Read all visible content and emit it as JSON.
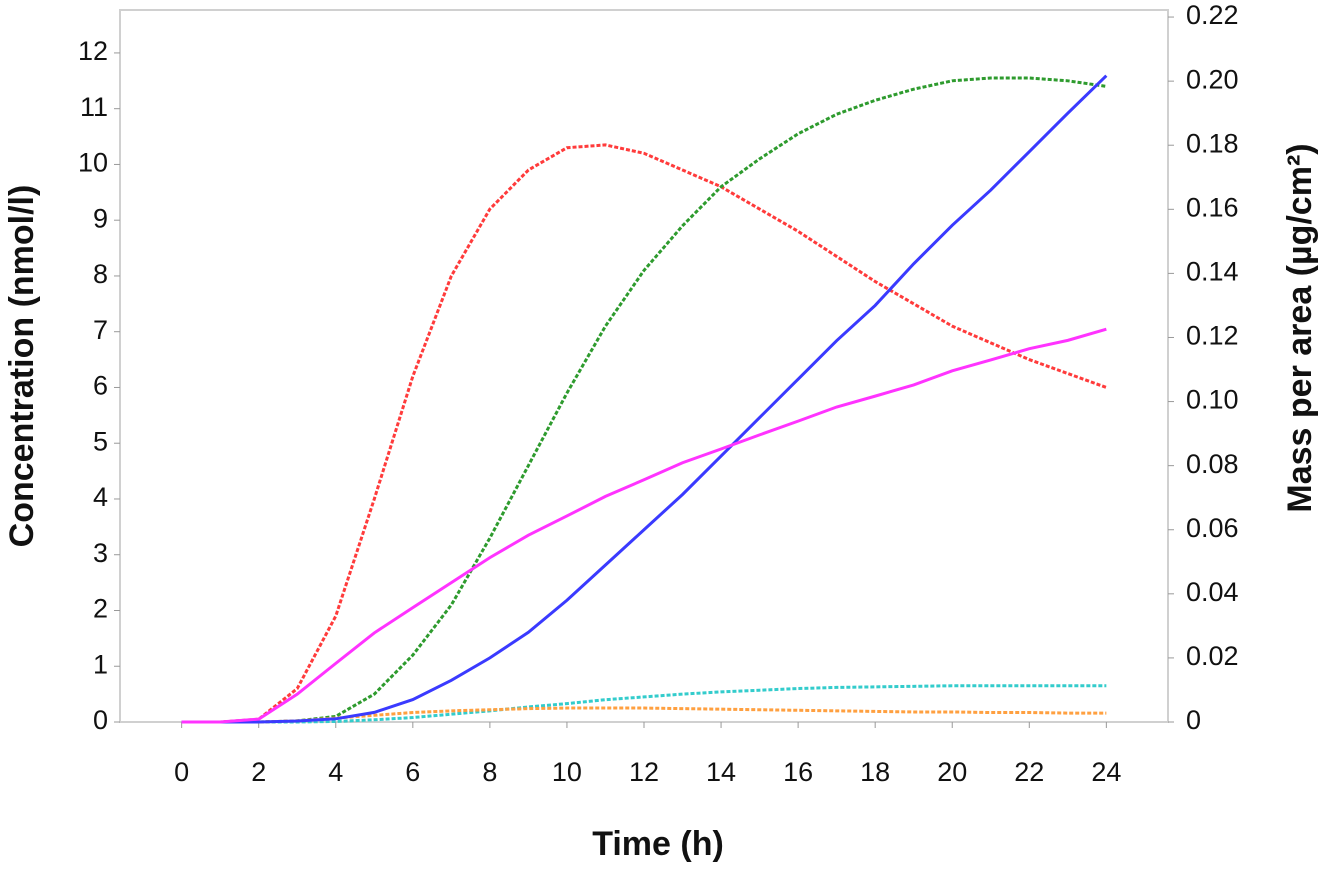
{
  "chart_data": {
    "type": "line",
    "x_label": "Time (h)",
    "y_label": "Concentration (nmol/l)",
    "y2_label": "Mass per area (µg/cm²)",
    "x": [
      0,
      1,
      2,
      3,
      4,
      5,
      6,
      7,
      8,
      9,
      10,
      11,
      12,
      13,
      14,
      15,
      16,
      17,
      18,
      19,
      20,
      21,
      22,
      23,
      24
    ],
    "xlim": [
      -1.6,
      25.6
    ],
    "xticks": [
      0,
      2,
      4,
      6,
      8,
      10,
      12,
      14,
      16,
      18,
      20,
      22,
      24
    ],
    "ylim": [
      0,
      12.77
    ],
    "yticks": [
      0,
      1,
      2,
      3,
      4,
      5,
      6,
      7,
      8,
      9,
      10,
      11,
      12
    ],
    "y2lim": [
      0,
      0.2222
    ],
    "y2ticks": [
      0,
      0.02,
      0.04,
      0.06,
      0.08,
      {
        "value": 0.1,
        "label": "0.10"
      },
      0.12,
      0.14,
      0.16,
      0.18,
      {
        "value": 0.2,
        "label": "0.20"
      },
      0.22
    ],
    "series": [
      {
        "color": "#ff3b3b",
        "dashed": true,
        "values": [
          0,
          0,
          0.05,
          0.6,
          1.9,
          4.0,
          6.2,
          8.0,
          9.2,
          9.9,
          10.3,
          10.35,
          10.2,
          9.9,
          9.6,
          9.2,
          8.8,
          8.35,
          7.9,
          7.5,
          7.1,
          6.8,
          6.5,
          6.25,
          6.0
        ]
      },
      {
        "color": "#2e9b2e",
        "dashed": true,
        "values": [
          0,
          0,
          0,
          0.02,
          0.1,
          0.5,
          1.2,
          2.1,
          3.3,
          4.6,
          5.9,
          7.1,
          8.1,
          8.9,
          9.6,
          10.1,
          10.55,
          10.9,
          11.15,
          11.35,
          11.5,
          11.55,
          11.55,
          11.5,
          11.4
        ]
      },
      {
        "color": "#33cccc",
        "dashed": true,
        "values": [
          0,
          0,
          0,
          0,
          0.01,
          0.04,
          0.08,
          0.14,
          0.2,
          0.27,
          0.33,
          0.4,
          0.45,
          0.5,
          0.54,
          0.57,
          0.6,
          0.62,
          0.63,
          0.64,
          0.65,
          0.65,
          0.65,
          0.65,
          0.65
        ]
      },
      {
        "color": "#ffa040",
        "dashed": true,
        "values": [
          0,
          0,
          0,
          0.02,
          0.07,
          0.12,
          0.17,
          0.2,
          0.22,
          0.24,
          0.25,
          0.25,
          0.25,
          0.24,
          0.23,
          0.22,
          0.21,
          0.2,
          0.19,
          0.18,
          0.18,
          0.17,
          0.17,
          0.16,
          0.16
        ]
      },
      {
        "color": "#3a3aff",
        "dashed": false,
        "axis": "y2",
        "values": [
          0,
          0,
          0,
          0.0003,
          0.001,
          0.003,
          0.007,
          0.013,
          0.02,
          0.028,
          0.038,
          0.049,
          0.06,
          0.071,
          0.083,
          0.095,
          0.107,
          0.119,
          0.13,
          0.143,
          0.155,
          0.166,
          0.178,
          0.19,
          0.2017
        ]
      },
      {
        "color": "#ff33ff",
        "dashed": false,
        "axis": "y2",
        "values": [
          0,
          0,
          0.0009,
          0.0087,
          0.0183,
          0.0278,
          0.0357,
          0.0435,
          0.0513,
          0.0583,
          0.0643,
          0.0704,
          0.0756,
          0.0809,
          0.0852,
          0.0896,
          0.0939,
          0.0983,
          0.1017,
          0.1052,
          0.1096,
          0.113,
          0.1165,
          0.1191,
          0.1226
        ]
      }
    ]
  }
}
